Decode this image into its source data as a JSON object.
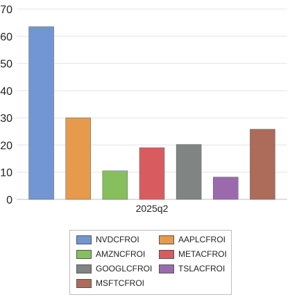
{
  "chart_data": {
    "type": "bar",
    "categories": [
      "2025q2"
    ],
    "series": [
      {
        "name": "NVDCFROI",
        "values": [
          63.5
        ],
        "color": "#7296d3"
      },
      {
        "name": "AAPLCFROI",
        "values": [
          30
        ],
        "color": "#e59a4c"
      },
      {
        "name": "AMZNCFROI",
        "values": [
          10.5
        ],
        "color": "#86bf5c"
      },
      {
        "name": "METACFROI",
        "values": [
          19
        ],
        "color": "#d85c5f"
      },
      {
        "name": "GOOGLCFROI",
        "values": [
          20.2
        ],
        "color": "#808483"
      },
      {
        "name": "TSLACFROI",
        "values": [
          8.2
        ],
        "color": "#9b6aad"
      },
      {
        "name": "MSFTCFROI",
        "values": [
          25.8
        ],
        "color": "#ad6b59"
      }
    ],
    "ylim": [
      0,
      70
    ],
    "yticks": [
      "0",
      "10",
      "20",
      "30",
      "40",
      "50",
      "60",
      "70"
    ],
    "grid": true,
    "legend_position": "bottom"
  }
}
